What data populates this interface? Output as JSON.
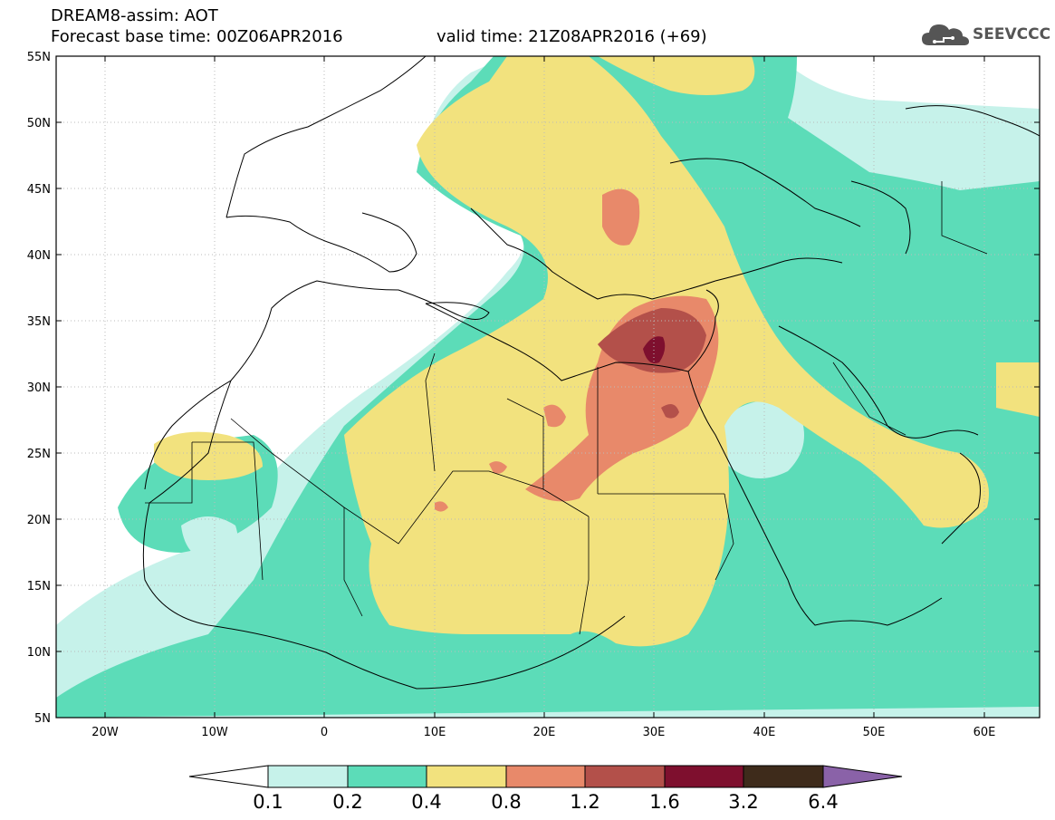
{
  "header": {
    "line1": "DREAM8-assim: AOT",
    "line2": "Forecast base time: 00Z06APR2016",
    "valid": "valid time: 21Z08APR2016 (+69)"
  },
  "logo": {
    "text": "SEEVCCC",
    "icon": "cloud-icon"
  },
  "map": {
    "lat_labels": [
      "55N",
      "50N",
      "45N",
      "40N",
      "35N",
      "30N",
      "25N",
      "20N",
      "15N",
      "10N",
      "5N"
    ],
    "lon_labels": [
      "20W",
      "10W",
      "0",
      "10E",
      "20E",
      "30E",
      "40E",
      "50E",
      "60E"
    ]
  },
  "colorbar": {
    "labels": [
      "0.1",
      "0.2",
      "0.4",
      "0.8",
      "1.2",
      "1.6",
      "3.2",
      "6.4"
    ],
    "colors": [
      "#ffffff",
      "#c6f2ea",
      "#5cdcb8",
      "#f2e27e",
      "#e8896a",
      "#b3504a",
      "#7e0f2e",
      "#3e2b1b",
      "#8a62a8"
    ]
  },
  "palette": {
    "c1": "#c6f2ea",
    "c2": "#5cdcb8",
    "c3": "#f2e27e",
    "c4": "#e8896a",
    "c5": "#b3504a",
    "c6": "#7e0f2e"
  }
}
